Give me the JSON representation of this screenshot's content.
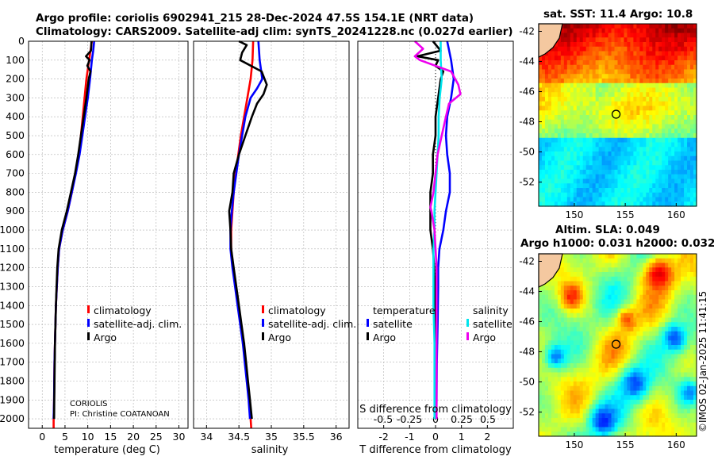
{
  "title_line1": "Argo profile: coriolis 6902941_215 28-Dec-2024 47.5S 154.1E (NRT data)",
  "title_line2": "Climatology: CARS2009. Satellite-adj clim: synTS_20241228.nc (0.027d earlier)",
  "colors": {
    "climatology": "#ff0000",
    "satellite": "#0000ff",
    "argo": "#000000",
    "sat_salinity": "#00e5ee",
    "argo_salinity": "#ee00ee",
    "grid": "#b0b0b0"
  },
  "chart_data": [
    {
      "type": "line",
      "name": "temperature",
      "xlabel": "temperature (deg C)",
      "ylabel": "",
      "xlim": [
        -3,
        32
      ],
      "ylim": [
        2050,
        0
      ],
      "xticks": [
        0,
        5,
        10,
        15,
        20,
        25,
        30
      ],
      "yticks": [
        0,
        100,
        200,
        300,
        400,
        500,
        600,
        700,
        800,
        900,
        1000,
        1100,
        1200,
        1300,
        1400,
        1500,
        1600,
        1700,
        1800,
        1900,
        2000
      ],
      "legend": [
        "climatology",
        "satellite-adj. clim.",
        "Argo"
      ],
      "credit": [
        "CORIOLIS",
        "PI: Christine COATANOAN"
      ],
      "series": [
        {
          "name": "climatology",
          "depth": [
            0,
            100,
            200,
            300,
            400,
            500,
            600,
            700,
            800,
            900,
            1000,
            1100,
            1200,
            1300,
            1400,
            1500,
            1600,
            1700,
            1800,
            1900,
            2000,
            2050
          ],
          "values": [
            10.9,
            10.3,
            9.7,
            9.3,
            8.9,
            8.5,
            8.0,
            7.3,
            6.5,
            5.6,
            4.5,
            3.7,
            3.4,
            3.2,
            3.0,
            2.9,
            2.8,
            2.7,
            2.65,
            2.6,
            2.5,
            2.5
          ]
        },
        {
          "name": "satellite-adj. clim.",
          "depth": [
            0,
            50,
            100,
            200,
            300,
            400,
            500,
            600,
            700,
            800,
            900,
            1000,
            1100,
            1200,
            1300,
            1400,
            1500,
            1600,
            1700,
            1800,
            1900,
            2000
          ],
          "values": [
            11.4,
            11.2,
            10.9,
            10.5,
            10.0,
            9.4,
            8.8,
            8.2,
            7.4,
            6.5,
            5.6,
            4.5,
            3.7,
            3.4,
            3.2,
            3.0,
            2.9,
            2.8,
            2.7,
            2.65,
            2.6,
            2.5
          ]
        },
        {
          "name": "Argo",
          "depth": [
            0,
            50,
            80,
            100,
            130,
            160,
            200,
            300,
            400,
            500,
            600,
            700,
            800,
            900,
            1000,
            1100,
            1200,
            1300,
            1400,
            1500,
            1600,
            1700,
            1800,
            1900,
            2000
          ],
          "values": [
            10.8,
            10.7,
            9.6,
            10.4,
            9.9,
            10.6,
            10.2,
            9.7,
            9.1,
            8.5,
            7.9,
            7.2,
            6.3,
            5.4,
            4.3,
            3.6,
            3.3,
            3.15,
            3.0,
            2.9,
            2.8,
            2.75,
            2.7,
            2.65,
            2.6
          ]
        }
      ]
    },
    {
      "type": "line",
      "name": "salinity",
      "xlabel": "salinity",
      "xlim": [
        33.8,
        36.2
      ],
      "ylim": [
        2050,
        0
      ],
      "xticks": [
        34,
        34.5,
        35,
        35.5,
        36
      ],
      "xticklabels": [
        "34",
        "34.5",
        "35",
        "35.5",
        "36"
      ],
      "legend": [
        "climatology",
        "satellite-adj. clim.",
        "Argo"
      ],
      "series": [
        {
          "name": "climatology",
          "depth": [
            0,
            100,
            200,
            300,
            400,
            500,
            600,
            700,
            800,
            900,
            1000,
            1100,
            1200,
            1300,
            1400,
            1500,
            1600,
            1700,
            1800,
            1900,
            2000,
            2050
          ],
          "values": [
            34.72,
            34.71,
            34.68,
            34.63,
            34.58,
            34.53,
            34.49,
            34.45,
            34.42,
            34.4,
            34.38,
            34.38,
            34.41,
            34.45,
            34.49,
            34.53,
            34.57,
            34.6,
            34.63,
            34.66,
            34.68,
            34.69
          ]
        },
        {
          "name": "satellite-adj. clim.",
          "depth": [
            0,
            100,
            200,
            250,
            300,
            400,
            500,
            600,
            700,
            800,
            900,
            1000,
            1100,
            1200,
            1300,
            1400,
            1500,
            1600,
            1700,
            1800,
            1900,
            2000
          ],
          "values": [
            34.8,
            34.82,
            34.86,
            34.78,
            34.68,
            34.6,
            34.55,
            34.5,
            34.46,
            34.42,
            34.39,
            34.37,
            34.37,
            34.4,
            34.44,
            34.48,
            34.52,
            34.56,
            34.59,
            34.62,
            34.65,
            34.67
          ]
        },
        {
          "name": "Argo",
          "depth": [
            0,
            20,
            60,
            100,
            160,
            230,
            280,
            330,
            400,
            500,
            600,
            700,
            800,
            900,
            1000,
            1100,
            1200,
            1300,
            1400,
            1500,
            1600,
            1700,
            1800,
            1900,
            2000
          ],
          "values": [
            34.5,
            34.62,
            34.55,
            34.52,
            34.85,
            34.93,
            34.88,
            34.78,
            34.7,
            34.6,
            34.5,
            34.42,
            34.4,
            34.35,
            34.37,
            34.38,
            34.42,
            34.46,
            34.5,
            34.54,
            34.58,
            34.61,
            34.64,
            34.67,
            34.7
          ]
        }
      ]
    },
    {
      "type": "line",
      "name": "difference",
      "xlabel": "T difference from climatology",
      "x2label": "S difference from climatology",
      "xlim": [
        -3,
        3
      ],
      "ylim": [
        2050,
        0
      ],
      "xticks": [
        -2,
        -1,
        0,
        1,
        2
      ],
      "s_ticklabels": [
        "-0.5",
        "-0.25",
        "0",
        "0.25",
        "0.5"
      ],
      "legend_left": [
        "temperature",
        "satellite",
        "Argo"
      ],
      "legend_right": [
        "salinity",
        "satellite",
        "Argo"
      ],
      "series": [
        {
          "name": "T satellite",
          "depth": [
            0,
            100,
            200,
            300,
            400,
            500,
            600,
            700,
            800,
            900,
            1000,
            1100,
            1200,
            1300,
            1500,
            1700,
            1900,
            2000
          ],
          "values": [
            0.45,
            0.6,
            0.7,
            0.6,
            0.45,
            0.4,
            0.45,
            0.55,
            0.55,
            0.4,
            0.3,
            0.15,
            0.1,
            0.1,
            0.08,
            0.05,
            0.04,
            0.03
          ]
        },
        {
          "name": "T Argo",
          "depth": [
            0,
            50,
            80,
            100,
            130,
            160,
            200,
            300,
            400,
            500,
            600,
            700,
            800,
            900,
            1000,
            1100,
            1200,
            1300,
            1500,
            1700,
            1900,
            2000
          ],
          "values": [
            -0.1,
            0.2,
            -0.7,
            0.1,
            0.0,
            0.3,
            0.2,
            0.1,
            0.0,
            0.0,
            -0.1,
            -0.1,
            -0.2,
            -0.2,
            -0.2,
            -0.1,
            -0.05,
            -0.03,
            -0.02,
            -0.01,
            0.0,
            0.0
          ]
        },
        {
          "name": "S satellite",
          "depth": [
            0,
            100,
            200,
            300,
            400,
            500,
            600,
            700,
            800,
            900,
            1000,
            1100,
            1200,
            1300,
            1400,
            1600,
            1800,
            2000
          ],
          "values": [
            0.05,
            0.05,
            0.06,
            0.04,
            0.03,
            0.03,
            0.02,
            0.01,
            0.0,
            -0.01,
            -0.01,
            -0.02,
            -0.02,
            -0.02,
            -0.02,
            -0.01,
            -0.01,
            -0.01
          ]
        },
        {
          "name": "S Argo",
          "depth": [
            0,
            40,
            80,
            100,
            160,
            230,
            280,
            330,
            400,
            500,
            600,
            700,
            800,
            880,
            900,
            1000,
            1100,
            1200,
            1400,
            1600,
            1800,
            2000
          ],
          "values": [
            -0.2,
            -0.12,
            -0.2,
            -0.15,
            0.15,
            0.22,
            0.24,
            0.13,
            0.1,
            0.06,
            0.02,
            0.0,
            -0.02,
            -0.05,
            -0.04,
            -0.01,
            0.0,
            0.01,
            0.01,
            0.01,
            0.01,
            0.01
          ]
        }
      ]
    },
    {
      "type": "heatmap",
      "name": "sst-map",
      "title": "sat. SST: 11.4 Argo: 10.8",
      "xlim": [
        146.5,
        162
      ],
      "ylim": [
        -53.6,
        -41.5
      ],
      "xticks": [
        150,
        155,
        160
      ],
      "yticks": [
        -42,
        -44,
        -46,
        -48,
        -50,
        -52
      ],
      "marker": {
        "lon": 154.1,
        "lat": -47.5
      },
      "colormap": "jet"
    },
    {
      "type": "heatmap",
      "name": "sla-map",
      "title_line1": "Altim. SLA: 0.049",
      "title_line2": "Argo h1000: 0.031 h2000: 0.032",
      "xlim": [
        146.5,
        162
      ],
      "ylim": [
        -53.6,
        -41.5
      ],
      "xticks": [
        150,
        155,
        160
      ],
      "yticks": [
        -42,
        -44,
        -46,
        -48,
        -50,
        -52
      ],
      "marker": {
        "lon": 154.1,
        "lat": -47.5
      },
      "colormap": "jet"
    }
  ],
  "watermark": "©IMOS 02-Jan-2025 11:41:15"
}
